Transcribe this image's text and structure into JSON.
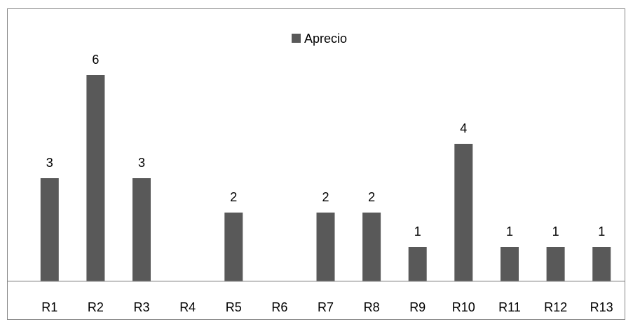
{
  "chart_data": {
    "type": "bar",
    "categories": [
      "R1",
      "R2",
      "R3",
      "R4",
      "R5",
      "R6",
      "R7",
      "R8",
      "R9",
      "R10",
      "R11",
      "R12",
      "R13"
    ],
    "series": [
      {
        "name": "Aprecio",
        "values": [
          3,
          6,
          3,
          0,
          2,
          0,
          2,
          2,
          1,
          4,
          1,
          1,
          1
        ],
        "labels": [
          "3",
          "6",
          "3",
          "",
          "2",
          "",
          "2",
          "2",
          "1",
          "4",
          "1",
          "1",
          "1"
        ]
      }
    ],
    "title": "",
    "xlabel": "",
    "ylabel": "",
    "ylim": [
      0,
      6
    ],
    "grid": false,
    "legend_position": "top",
    "colors": {
      "bar": "#595959",
      "axis": "#888888",
      "frame": "#888888"
    }
  }
}
